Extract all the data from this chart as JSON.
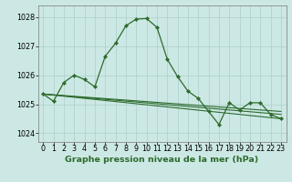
{
  "title": "Graphe pression niveau de la mer (hPa)",
  "background_color": "#cce8e4",
  "plot_bg_color": "#cce8e4",
  "grid_color": "#aacfca",
  "line_color": "#2d6b2d",
  "xlim": [
    -0.5,
    23.5
  ],
  "ylim": [
    1023.7,
    1028.4
  ],
  "yticks": [
    1024,
    1025,
    1026,
    1027,
    1028
  ],
  "xticks": [
    0,
    1,
    2,
    3,
    4,
    5,
    6,
    7,
    8,
    9,
    10,
    11,
    12,
    13,
    14,
    15,
    16,
    17,
    18,
    19,
    20,
    21,
    22,
    23
  ],
  "series_main": [
    1025.35,
    1025.1,
    1025.75,
    1026.0,
    1025.85,
    1025.6,
    1026.65,
    1027.1,
    1027.7,
    1027.93,
    1027.95,
    1027.65,
    1026.55,
    1025.95,
    1025.45,
    1025.2,
    1024.75,
    1024.3,
    1025.05,
    1024.8,
    1025.05,
    1025.05,
    1024.65,
    1024.5
  ],
  "series_trend1": [
    [
      0,
      1025.35
    ],
    [
      23,
      1024.5
    ]
  ],
  "series_trend2": [
    [
      0,
      1025.35
    ],
    [
      23,
      1024.65
    ]
  ],
  "series_trend3": [
    [
      0,
      1025.35
    ],
    [
      23,
      1024.75
    ]
  ],
  "title_fontsize": 6.8,
  "tick_fontsize": 5.8
}
